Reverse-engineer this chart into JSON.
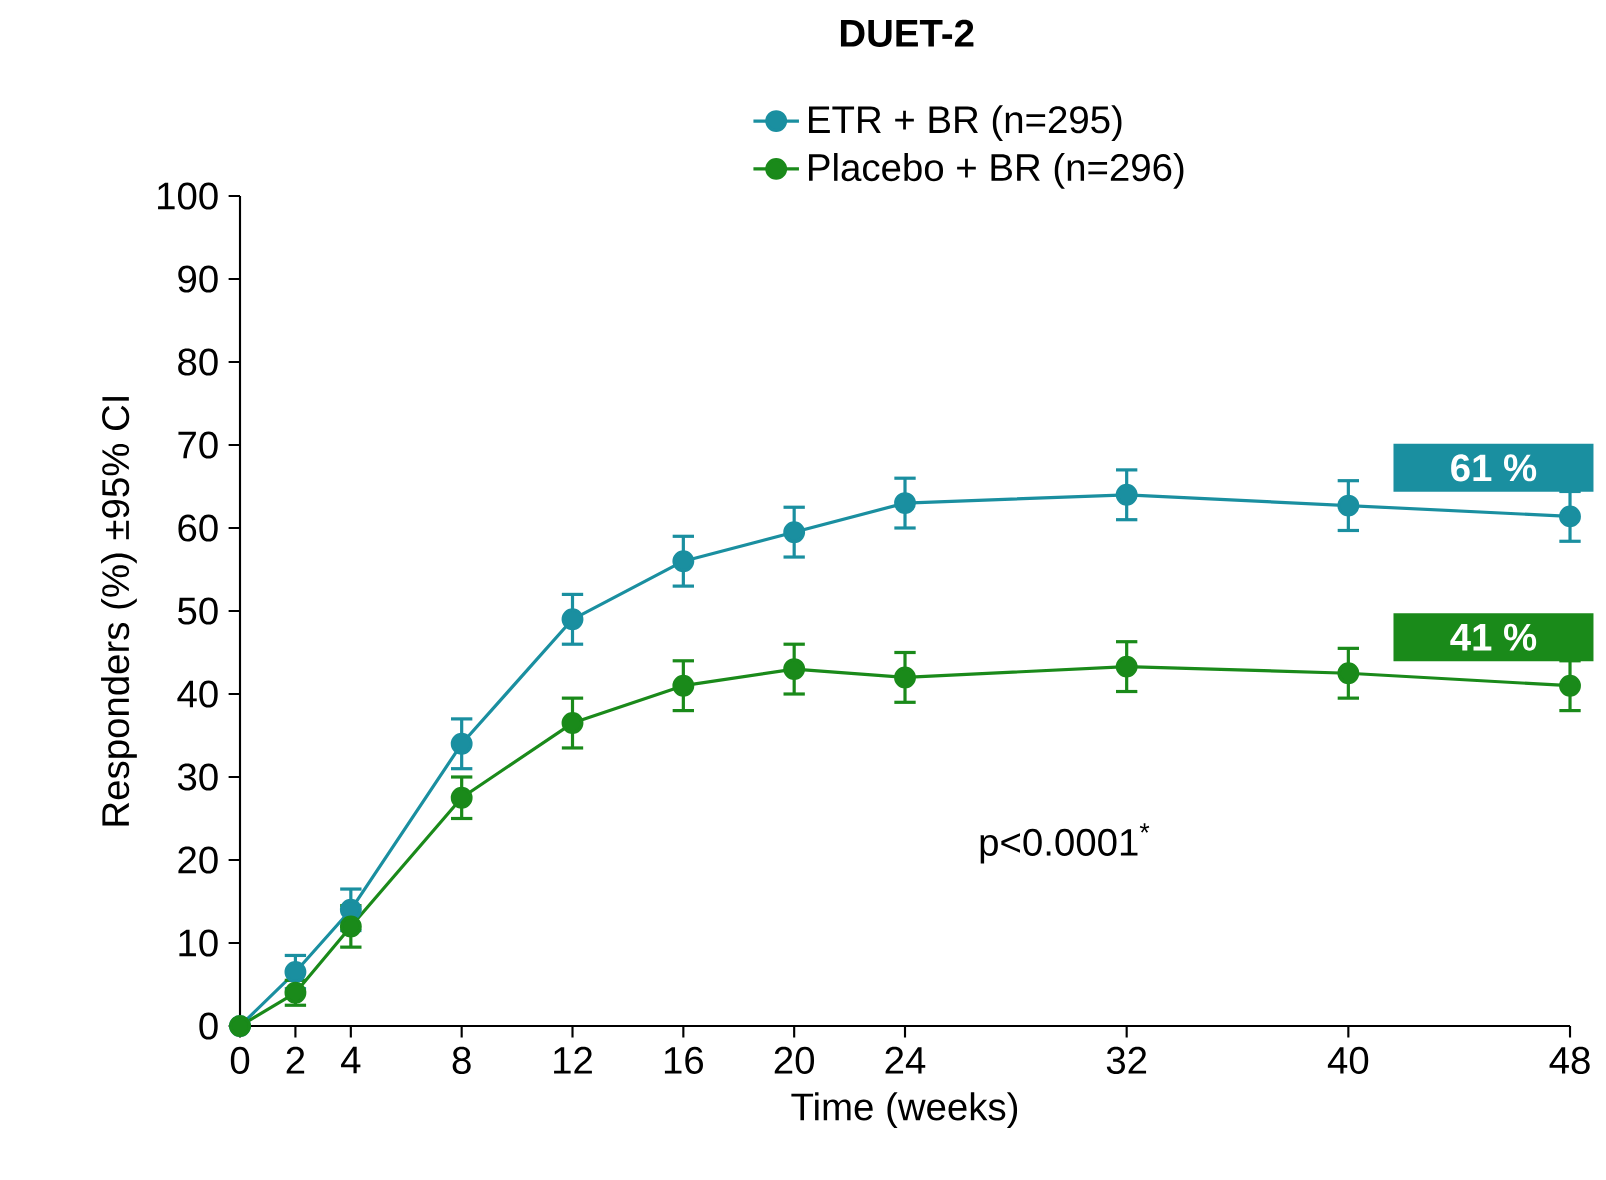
{
  "chart_data": {
    "type": "line",
    "title": "DUET-2",
    "xlabel": "Time (weeks)",
    "ylabel": "Responders (%) ±95% CI",
    "x": [
      0,
      2,
      4,
      8,
      12,
      16,
      20,
      24,
      32,
      40,
      48
    ],
    "series": [
      {
        "name": "ETR + BR (n=295)",
        "color": "#1a8fa0",
        "values": [
          0,
          6.5,
          14,
          34,
          49,
          56,
          59.5,
          63,
          64,
          62.7,
          61.4
        ],
        "errors": [
          null,
          2,
          2.5,
          3,
          3,
          3,
          3,
          3,
          3,
          3,
          3
        ]
      },
      {
        "name": "Placebo + BR (n=296)",
        "color": "#1a8a1a",
        "values": [
          0,
          4,
          12,
          27.5,
          36.5,
          41,
          43,
          42,
          43.3,
          42.5,
          41
        ],
        "errors": [
          null,
          1.5,
          2.5,
          2.5,
          3,
          3,
          3,
          3,
          3,
          3,
          3
        ]
      }
    ],
    "annotations": [
      {
        "text": "61 %",
        "x": 48,
        "y": 61.4
      },
      {
        "text": "41 %",
        "x": 48,
        "y": 41
      },
      "p<0.0001$^{*}$"
    ],
    "xlim": [
      0,
      48
    ],
    "xticks": [
      0,
      2,
      4,
      8,
      12,
      16,
      20,
      24,
      32,
      40,
      48
    ],
    "ylim": [
      0,
      100
    ],
    "yticks": [
      0,
      10,
      20,
      30,
      40,
      50,
      60,
      70,
      80,
      90,
      100
    ],
    "legend": "top",
    "marker": "circle",
    "line_style": "solid",
    "grid": false
  }
}
